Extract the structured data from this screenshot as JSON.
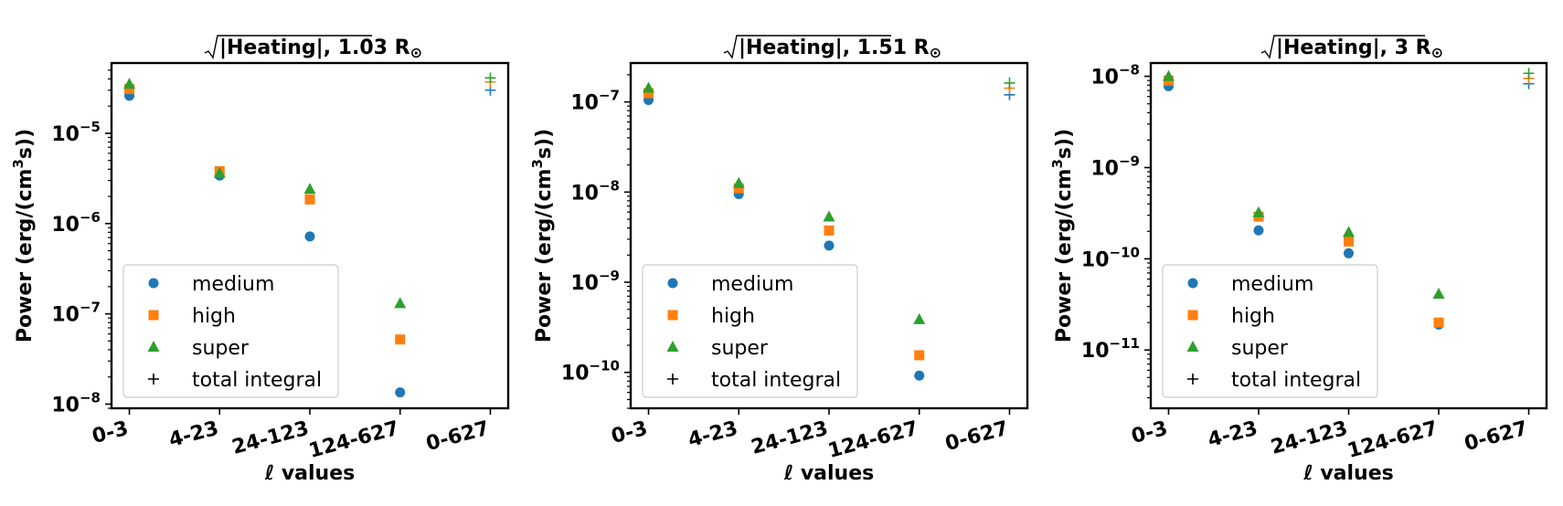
{
  "chart_data": [
    {
      "type": "scatter",
      "title_text": "|Heating|, 1.03 R",
      "title_symbol": "⊙",
      "xlabel_symbol": "ℓ",
      "xlabel_text": " values",
      "ylabel": "Power (erg/(cm",
      "ylabel_sup": "3",
      "ylabel_end": "s))",
      "categories": [
        "0-3",
        "4-23",
        "24-123",
        "124-627",
        "0-627"
      ],
      "yscale": "log",
      "ylim": [
        9e-09,
        6e-05
      ],
      "yticks": [
        1e-08,
        1e-07,
        1e-06,
        1e-05
      ],
      "ytick_labels": [
        {
          "base": "10",
          "exp": "−8"
        },
        {
          "base": "10",
          "exp": "−7"
        },
        {
          "base": "10",
          "exp": "−6"
        },
        {
          "base": "10",
          "exp": "−5"
        }
      ],
      "series": [
        {
          "name": "medium",
          "marker": "circle",
          "color": "#1f77b4",
          "values": [
            2.6e-05,
            3.4e-06,
            7.2e-07,
            1.35e-08,
            null
          ]
        },
        {
          "name": "high",
          "marker": "square",
          "color": "#ff7f0e",
          "values": [
            3.1e-05,
            3.8e-06,
            1.85e-06,
            5.2e-08,
            null
          ]
        },
        {
          "name": "super",
          "marker": "triangle",
          "color": "#2ca02c",
          "values": [
            3.5e-05,
            3.6e-06,
            2.4e-06,
            1.3e-07,
            null
          ]
        },
        {
          "name": "total integral",
          "marker": "plus",
          "color": "#000000",
          "values": [
            null,
            null,
            null,
            null,
            null
          ]
        }
      ],
      "total_integral_points": [
        {
          "color": "#1f77b4",
          "value": 3e-05
        },
        {
          "color": "#ff7f0e",
          "value": 3.7e-05
        },
        {
          "color": "#2ca02c",
          "value": 4.1e-05
        }
      ]
    },
    {
      "type": "scatter",
      "title_text": "|Heating|, 1.51 R",
      "title_symbol": "⊙",
      "xlabel_symbol": "ℓ",
      "xlabel_text": " values",
      "ylabel": "Power (erg/(cm",
      "ylabel_sup": "3",
      "ylabel_end": "s))",
      "categories": [
        "0-3",
        "4-23",
        "24-123",
        "124-627",
        "0-627"
      ],
      "yscale": "log",
      "ylim": [
        4e-11,
        2.7e-07
      ],
      "yticks": [
        1e-10,
        1e-09,
        1e-08,
        1e-07
      ],
      "ytick_labels": [
        {
          "base": "10",
          "exp": "−10"
        },
        {
          "base": "10",
          "exp": "−9"
        },
        {
          "base": "10",
          "exp": "−8"
        },
        {
          "base": "10",
          "exp": "−7"
        }
      ],
      "series": [
        {
          "name": "medium",
          "marker": "circle",
          "color": "#1f77b4",
          "values": [
            1.05e-07,
            9.5e-09,
            2.55e-09,
            9.2e-11,
            null
          ]
        },
        {
          "name": "high",
          "marker": "square",
          "color": "#ff7f0e",
          "values": [
            1.25e-07,
            1.1e-08,
            3.75e-09,
            1.55e-10,
            null
          ]
        },
        {
          "name": "super",
          "marker": "triangle",
          "color": "#2ca02c",
          "values": [
            1.42e-07,
            1.25e-08,
            5.3e-09,
            3.85e-10,
            null
          ]
        },
        {
          "name": "total integral",
          "marker": "plus",
          "color": "#000000",
          "values": [
            null,
            null,
            null,
            null,
            null
          ]
        }
      ],
      "total_integral_points": [
        {
          "color": "#1f77b4",
          "value": 1.2e-07
        },
        {
          "color": "#ff7f0e",
          "value": 1.42e-07
        },
        {
          "color": "#2ca02c",
          "value": 1.62e-07
        }
      ]
    },
    {
      "type": "scatter",
      "title_text": "|Heating|, 3 R",
      "title_symbol": "⊙",
      "xlabel_symbol": "ℓ",
      "xlabel_text": " values",
      "ylabel": "Power (erg/(cm",
      "ylabel_sup": "3",
      "ylabel_end": "s))",
      "categories": [
        "0-3",
        "4-23",
        "24-123",
        "124-627",
        "0-627"
      ],
      "yscale": "log",
      "ylim": [
        2.3e-12,
        1.4e-08
      ],
      "yticks": [
        1e-11,
        1e-10,
        1e-09,
        1e-08
      ],
      "ytick_labels": [
        {
          "base": "10",
          "exp": "−11"
        },
        {
          "base": "10",
          "exp": "−10"
        },
        {
          "base": "10",
          "exp": "−9"
        },
        {
          "base": "10",
          "exp": "−8"
        }
      ],
      "series": [
        {
          "name": "medium",
          "marker": "circle",
          "color": "#1f77b4",
          "values": [
            7.8e-09,
            2.05e-10,
            1.15e-10,
            1.9e-11,
            null
          ]
        },
        {
          "name": "high",
          "marker": "square",
          "color": "#ff7f0e",
          "values": [
            9e-09,
            2.9e-10,
            1.55e-10,
            2e-11,
            null
          ]
        },
        {
          "name": "super",
          "marker": "triangle",
          "color": "#2ca02c",
          "values": [
            1e-08,
            3.2e-10,
            1.95e-10,
            4.1e-11,
            null
          ]
        },
        {
          "name": "total integral",
          "marker": "plus",
          "color": "#000000",
          "values": [
            null,
            null,
            null,
            null,
            null
          ]
        }
      ],
      "total_integral_points": [
        {
          "color": "#1f77b4",
          "value": 8.3e-09
        },
        {
          "color": "#ff7f0e",
          "value": 9.5e-09
        },
        {
          "color": "#2ca02c",
          "value": 1.08e-08
        }
      ]
    }
  ]
}
